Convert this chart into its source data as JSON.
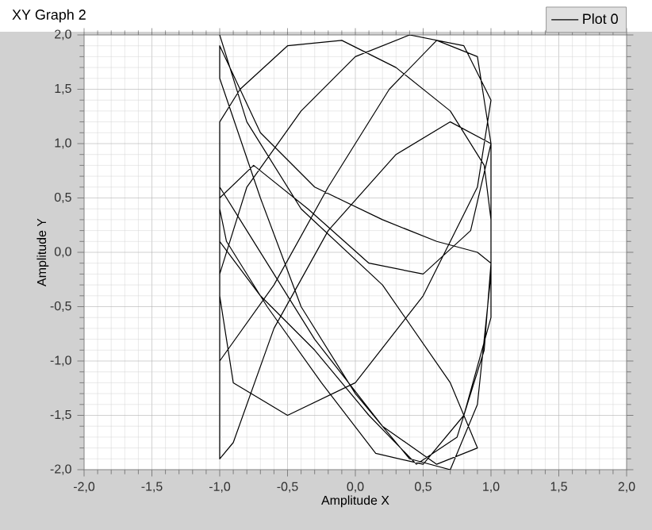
{
  "chart_data": {
    "type": "line",
    "title": "XY Graph 2",
    "xlabel": "Amplitude X",
    "ylabel": "Amplitude Y",
    "xlim": [
      -2,
      2
    ],
    "ylim": [
      -2,
      2
    ],
    "xticks": [
      {
        "value": -2,
        "label": "-2,0"
      },
      {
        "value": -1.5,
        "label": "-1,5"
      },
      {
        "value": -1,
        "label": "-1,0"
      },
      {
        "value": -0.5,
        "label": "-0,5"
      },
      {
        "value": 0,
        "label": "0,0"
      },
      {
        "value": 0.5,
        "label": "0,5"
      },
      {
        "value": 1,
        "label": "1,0"
      },
      {
        "value": 1.5,
        "label": "1,5"
      },
      {
        "value": 2,
        "label": "2,0"
      }
    ],
    "yticks": [
      {
        "value": -2,
        "label": "-2,0"
      },
      {
        "value": -1.5,
        "label": "-1,5"
      },
      {
        "value": -1,
        "label": "-1,0"
      },
      {
        "value": -0.5,
        "label": "-0,5"
      },
      {
        "value": 0,
        "label": "0,0"
      },
      {
        "value": 0.5,
        "label": "0,5"
      },
      {
        "value": 1,
        "label": "1,0"
      },
      {
        "value": 1.5,
        "label": "1,5"
      },
      {
        "value": 2,
        "label": "2,0"
      }
    ],
    "grid": true,
    "legend": "top right",
    "marker": "none",
    "line_style": "solid",
    "series": [
      {
        "name": "Plot 0",
        "color": "#000000",
        "x": [
          -1,
          -0.8,
          -0.4,
          0.2,
          0.7,
          0.9,
          0.6,
          0.2,
          -0.3,
          -0.8,
          -1,
          -1,
          -0.9,
          -0.5,
          0,
          0.5,
          0.9,
          1,
          0.8,
          0.4,
          0,
          -0.4,
          -0.8,
          -1,
          -1,
          -0.9,
          -0.6,
          -0.2,
          0.3,
          0.7,
          1,
          1,
          0.9,
          0.7,
          0.4,
          0,
          -0.4,
          -0.7,
          -1,
          -1,
          -0.7,
          -0.3,
          0.2,
          0.6,
          0.9,
          1,
          0.95,
          0.75,
          0.45,
          0.1,
          -0.3,
          -0.7,
          -1,
          -1,
          -0.85,
          -0.5,
          -0.1,
          0.3,
          0.7,
          0.95,
          1,
          1,
          0.8,
          0.5,
          0.15,
          -0.25,
          -0.65,
          -0.95,
          -1,
          -1,
          -0.6,
          -0.2,
          0.25,
          0.6,
          0.9,
          1,
          0.85,
          0.5,
          0.1,
          -0.35,
          -0.75,
          -1
        ],
        "values": [
          2,
          1.2,
          0.4,
          -0.3,
          -1.2,
          -1.8,
          -1.95,
          -1.6,
          -0.8,
          0.2,
          0.6,
          -0.4,
          -1.2,
          -1.5,
          -1.2,
          -0.4,
          0.6,
          1.4,
          1.9,
          2,
          1.8,
          1.3,
          0.6,
          -0.2,
          -1.9,
          -1.75,
          -0.7,
          0.2,
          0.9,
          1.2,
          1,
          -0.2,
          -1.4,
          -2,
          -1.9,
          -1.3,
          -0.5,
          0.5,
          1.6,
          1.9,
          1.1,
          0.6,
          0.3,
          0.1,
          0,
          -0.1,
          -0.9,
          -1.7,
          -1.95,
          -1.5,
          -0.9,
          -0.4,
          0.1,
          1.2,
          1.5,
          1.9,
          1.95,
          1.7,
          1.3,
          0.8,
          0.3,
          -0.6,
          -1.5,
          -1.95,
          -1.85,
          -1.2,
          -0.5,
          0.1,
          0.4,
          -1,
          -0.3,
          0.6,
          1.5,
          1.95,
          1.8,
          1.0,
          0.2,
          -0.2,
          -0.1,
          0.4,
          0.8,
          0.5
        ]
      }
    ]
  }
}
